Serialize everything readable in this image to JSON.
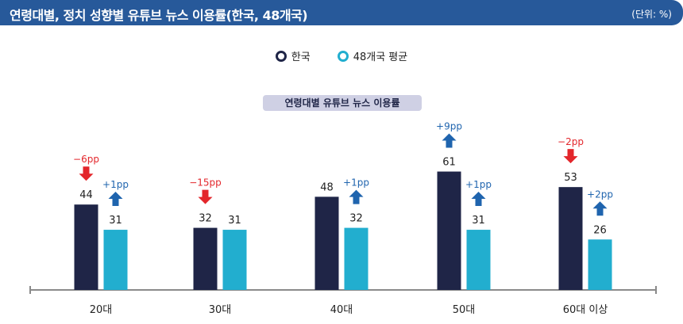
{
  "header": {
    "title": "연령대별, 정치 성향별 유튜브 뉴스 이용률(한국, 48개국)",
    "unit": "(단위: %)"
  },
  "colors": {
    "header_bg": "#27599a",
    "korea": "#1f2547",
    "avg": "#22aecf",
    "up": "#1f64ae",
    "down": "#e3262b"
  },
  "legend": [
    {
      "label": "한국",
      "color": "#1f2547"
    },
    {
      "label": "48개국 평균",
      "color": "#22aecf"
    }
  ],
  "chart_data": {
    "type": "bar",
    "title": "연령대별 유튜브 뉴스 이용률",
    "categories": [
      "20대",
      "30대",
      "40대",
      "50대",
      "60대 이상"
    ],
    "series": [
      {
        "name": "한국",
        "values": [
          44,
          32,
          48,
          61,
          53
        ],
        "changes": [
          {
            "label": "−6pp",
            "direction": "down"
          },
          {
            "label": "−15pp",
            "direction": "down"
          },
          null,
          {
            "label": "+9pp",
            "direction": "up"
          },
          {
            "label": "−2pp",
            "direction": "down"
          }
        ]
      },
      {
        "name": "48개국 평균",
        "values": [
          31,
          31,
          32,
          31,
          26
        ],
        "changes": [
          {
            "label": "+1pp",
            "direction": "up"
          },
          null,
          {
            "label": "+1pp",
            "direction": "up"
          },
          {
            "label": "+1pp",
            "direction": "up"
          },
          {
            "label": "+2pp",
            "direction": "up"
          }
        ]
      }
    ],
    "ylim": [
      0,
      70
    ],
    "grid": false,
    "legend_position": "top-center"
  }
}
